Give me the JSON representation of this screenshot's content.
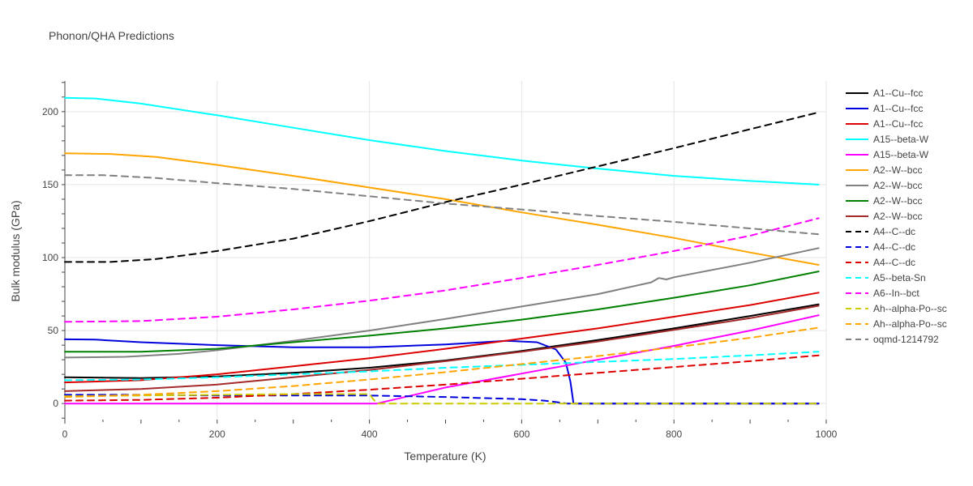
{
  "chart_data": {
    "type": "line",
    "title": "Phonon/QHA Predictions",
    "xlabel": "Temperature (K)",
    "ylabel": "Bulk modulus (GPa)",
    "xlim": [
      0,
      1000
    ],
    "ylim": [
      -11,
      221
    ],
    "xticks": [
      0,
      200,
      400,
      600,
      800,
      1000
    ],
    "yticks": [
      0,
      50,
      100,
      150,
      200
    ],
    "grid": true,
    "legend_position": "right",
    "series": [
      {
        "name": "A1--Cu--fcc",
        "color": "#000000",
        "dash": "solid",
        "x": [
          0,
          100,
          200,
          300,
          400,
          500,
          600,
          700,
          800,
          900,
          990
        ],
        "y": [
          18,
          17.5,
          18.5,
          21,
          24.5,
          29.5,
          36,
          43.5,
          51.5,
          60,
          68
        ]
      },
      {
        "name": "A1--Cu--fcc",
        "color": "#0000dd",
        "dash": "solid",
        "x": [
          0,
          40,
          100,
          200,
          300,
          400,
          500,
          580,
          620,
          645,
          658,
          664,
          668,
          700,
          800,
          900,
          990
        ],
        "y": [
          44,
          43.8,
          42,
          40,
          38.5,
          38.5,
          40.5,
          43,
          42,
          37,
          28,
          15,
          0,
          0,
          0,
          0,
          0
        ]
      },
      {
        "name": "A1--Cu--fcc",
        "color": "#dd0000",
        "dash": "solid",
        "x": [
          0,
          100,
          200,
          300,
          400,
          500,
          600,
          700,
          800,
          900,
          990
        ],
        "y": [
          14.5,
          16,
          20,
          25.5,
          31,
          37.5,
          44.5,
          51.5,
          59.5,
          67.5,
          76
        ]
      },
      {
        "name": "A15--beta-W",
        "color": "#00ffff",
        "dash": "solid",
        "x": [
          0,
          40,
          100,
          200,
          300,
          400,
          500,
          600,
          700,
          800,
          900,
          990
        ],
        "y": [
          209.5,
          209,
          205.5,
          197.5,
          189,
          180.5,
          173,
          166.5,
          161,
          156,
          152.5,
          150
        ]
      },
      {
        "name": "A15--beta-W",
        "color": "#ff00ff",
        "dash": "solid",
        "x": [
          0,
          100,
          200,
          300,
          400,
          410,
          500,
          600,
          700,
          800,
          900,
          990
        ],
        "y": [
          0,
          0,
          0,
          0,
          0,
          0,
          11,
          20.5,
          30,
          39.5,
          50,
          60.5
        ]
      },
      {
        "name": "A2--W--bcc",
        "color": "#ffa500",
        "dash": "solid",
        "x": [
          0,
          60,
          120,
          200,
          300,
          400,
          500,
          600,
          700,
          800,
          900,
          990
        ],
        "y": [
          171.5,
          171,
          169,
          163.5,
          156,
          148,
          140,
          131,
          122.5,
          113.5,
          103.5,
          95
        ]
      },
      {
        "name": "A2--W--bcc",
        "color": "#808080",
        "dash": "solid",
        "x": [
          0,
          80,
          150,
          200,
          300,
          400,
          500,
          600,
          700,
          770,
          780,
          790,
          800,
          900,
          990
        ],
        "y": [
          31.5,
          32,
          34,
          36.5,
          43,
          50,
          58,
          66.5,
          75,
          83,
          86,
          85,
          86.5,
          96.5,
          106.5
        ]
      },
      {
        "name": "A2--W--bcc",
        "color": "#008000",
        "dash": "solid",
        "x": [
          0,
          100,
          200,
          300,
          400,
          500,
          600,
          700,
          800,
          900,
          990
        ],
        "y": [
          35.5,
          35.5,
          37.5,
          42,
          46.5,
          51.5,
          57.5,
          64.5,
          72.5,
          81,
          90.5
        ]
      },
      {
        "name": "A2--W--bcc",
        "color": "#a52a2a",
        "dash": "solid",
        "x": [
          0,
          100,
          200,
          300,
          400,
          500,
          600,
          700,
          800,
          900,
          990
        ],
        "y": [
          8.5,
          10,
          13,
          18,
          23,
          29,
          35.5,
          42.5,
          50.5,
          58.5,
          67
        ]
      },
      {
        "name": "A4--C--dc",
        "color": "#000000",
        "dash": "dash",
        "x": [
          0,
          60,
          120,
          200,
          300,
          400,
          500,
          600,
          700,
          800,
          900,
          990
        ],
        "y": [
          97,
          97,
          99,
          104.5,
          113,
          125,
          138,
          150,
          162.5,
          175,
          188,
          199.5
        ]
      },
      {
        "name": "A4--C--dc",
        "color": "#0000dd",
        "dash": "dash",
        "x": [
          0,
          100,
          200,
          300,
          400,
          500,
          600,
          630,
          660,
          670,
          700,
          800,
          900,
          990
        ],
        "y": [
          6,
          6,
          5.5,
          5.5,
          5.5,
          4.5,
          3,
          2,
          0,
          0,
          0,
          0,
          0,
          0
        ]
      },
      {
        "name": "A4--C--dc",
        "color": "#dd0000",
        "dash": "dash",
        "x": [
          0,
          100,
          200,
          300,
          400,
          500,
          600,
          700,
          800,
          900,
          990
        ],
        "y": [
          2,
          2.5,
          4,
          6.5,
          9.5,
          13,
          17,
          21,
          25,
          29,
          33
        ]
      },
      {
        "name": "A5--beta-Sn",
        "color": "#00ffff",
        "dash": "dash",
        "x": [
          0,
          100,
          200,
          300,
          400,
          500,
          600,
          700,
          800,
          900,
          990
        ],
        "y": [
          16,
          16.5,
          18,
          20,
          22,
          24.5,
          26.5,
          28.5,
          30.5,
          33,
          35.5
        ]
      },
      {
        "name": "A6--In--bct",
        "color": "#ff00ff",
        "dash": "dash",
        "x": [
          0,
          100,
          200,
          300,
          400,
          500,
          600,
          700,
          800,
          900,
          990
        ],
        "y": [
          56,
          56.5,
          59.5,
          64.5,
          70.5,
          77.5,
          86,
          95,
          104.5,
          115,
          127
        ]
      },
      {
        "name": "Ah--alpha-Po--sc",
        "color": "#cccc00",
        "dash": "dash",
        "x": [
          0,
          100,
          200,
          300,
          400,
          405,
          410,
          500,
          600,
          700,
          800,
          900,
          990
        ],
        "y": [
          5,
          5.5,
          6,
          6.5,
          6.5,
          3,
          0,
          0,
          0,
          0,
          0,
          0,
          0
        ]
      },
      {
        "name": "Ah--alpha-Po--sc",
        "color": "#ffa500",
        "dash": "dash",
        "x": [
          0,
          100,
          200,
          300,
          400,
          500,
          600,
          700,
          800,
          900,
          990
        ],
        "y": [
          4.5,
          6,
          8.5,
          12,
          16.5,
          21.5,
          27,
          32.5,
          38.5,
          45,
          52
        ]
      },
      {
        "name": "oqmd-1214792",
        "color": "#808080",
        "dash": "dash",
        "x": [
          0,
          50,
          120,
          200,
          300,
          400,
          500,
          600,
          700,
          800,
          900,
          990
        ],
        "y": [
          156.5,
          156.5,
          154.5,
          151,
          147,
          142,
          137,
          133,
          128.5,
          124.5,
          120,
          116
        ]
      }
    ]
  }
}
